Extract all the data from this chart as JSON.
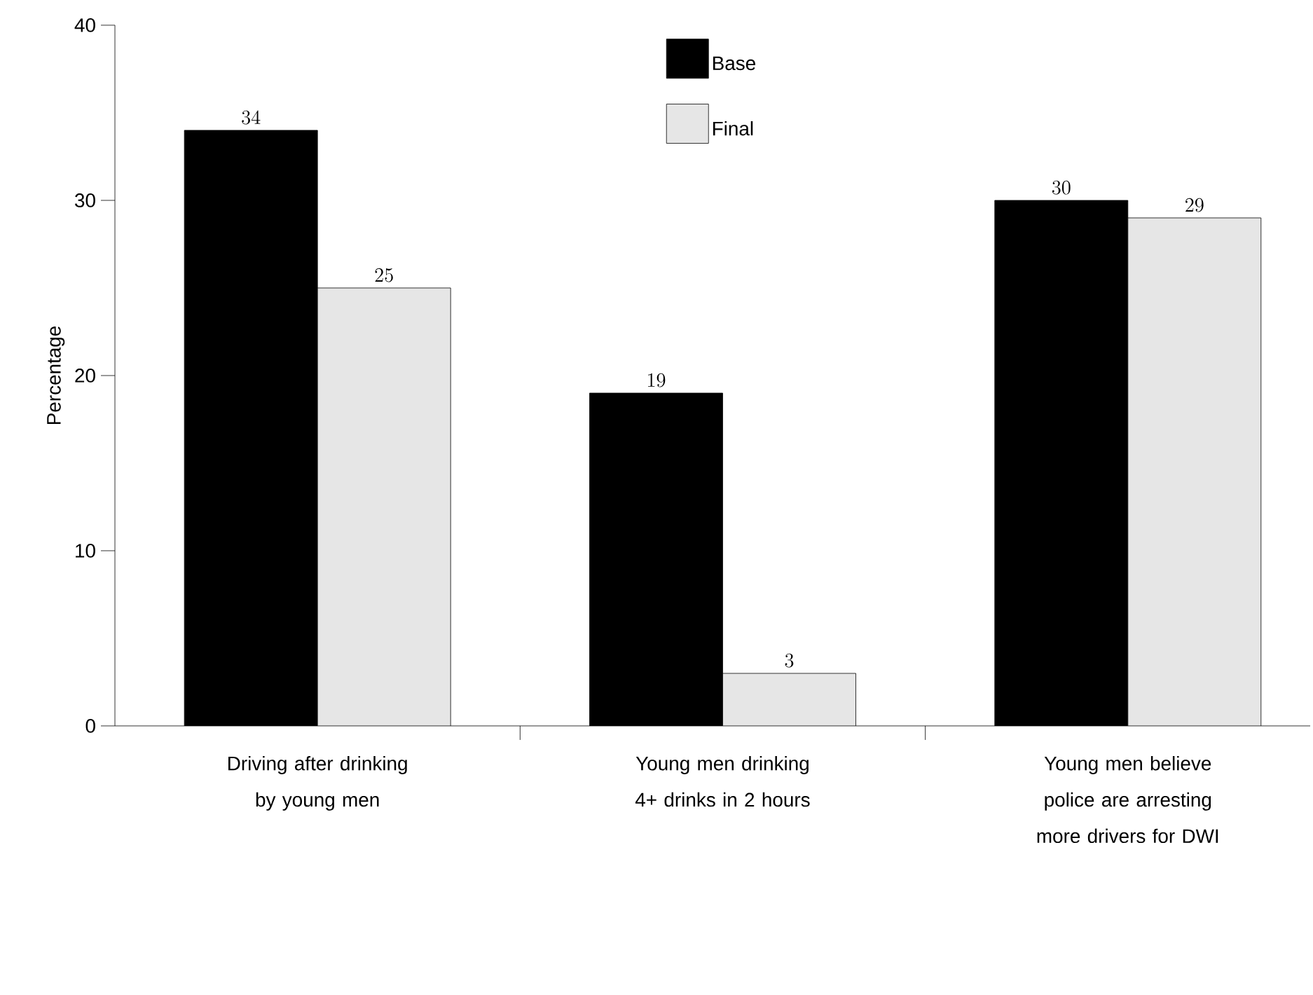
{
  "chart_data": {
    "type": "bar",
    "ylabel": "Percentage",
    "categories": [
      "Driving after drinking by young men",
      "Young men drinking 4+ drinks in 2 hours",
      "Young men believe police are arresting more drivers for DWI"
    ],
    "series": [
      {
        "name": "Base",
        "color": "#000000",
        "values": [
          34,
          19,
          30
        ]
      },
      {
        "name": "Final",
        "color": "#e6e6e6",
        "values": [
          25,
          3,
          29
        ]
      }
    ],
    "ylim": [
      0,
      40
    ],
    "yticks": [
      0,
      10,
      20,
      30,
      40
    ],
    "grid": false,
    "legend": "top",
    "data_labels": true
  }
}
